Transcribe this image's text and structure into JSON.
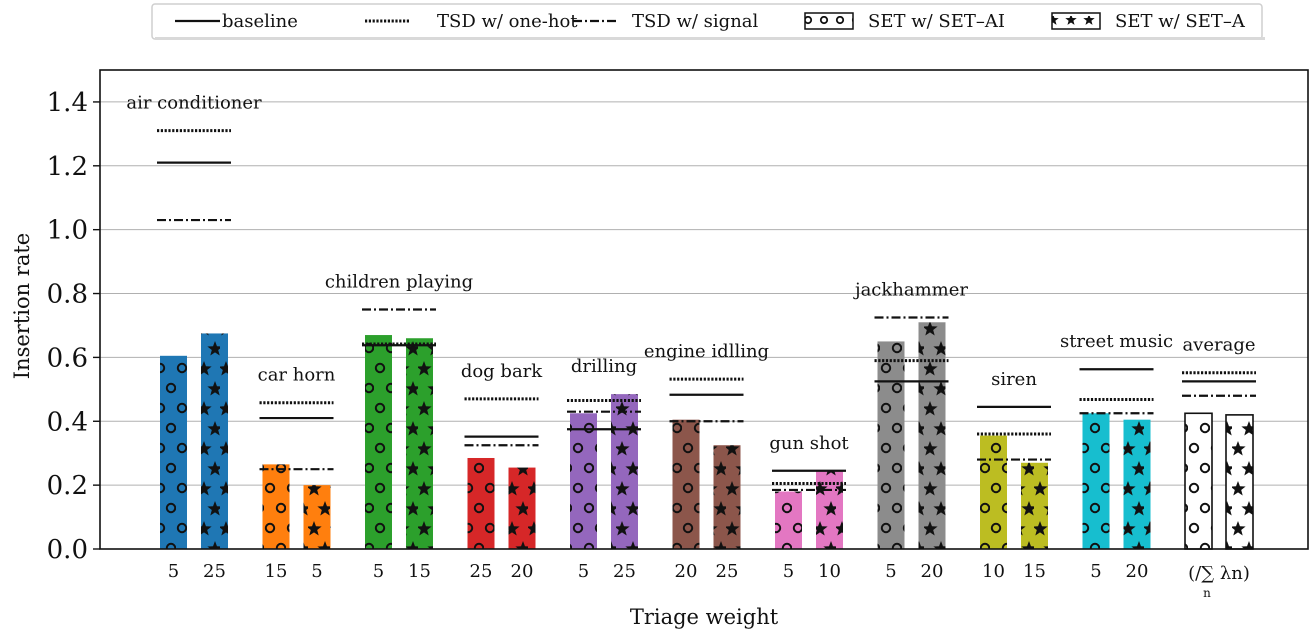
{
  "chart_data": {
    "type": "bar",
    "xlabel": "Triage weight",
    "ylabel": "Insertion rate",
    "ylim": [
      0,
      1.5
    ],
    "yticks": [
      "0.0",
      "0.2",
      "0.4",
      "0.6",
      "0.8",
      "1.0",
      "1.2",
      "1.4"
    ],
    "grid": "horizontal",
    "legend_position": "top",
    "legend": [
      {
        "label": "baseline",
        "style": "solid"
      },
      {
        "label": "TSD w/ one-hot",
        "style": "dotted"
      },
      {
        "label": "TSD w/ signal",
        "style": "dashdot"
      },
      {
        "label": "SET w/ SET–AI",
        "style": "circle-hatch"
      },
      {
        "label": "SET w/ SET–A",
        "style": "star-hatch"
      }
    ],
    "groups": [
      {
        "name": "air conditioner",
        "color": "#1f77b4",
        "weights": [
          "5",
          "25"
        ],
        "set_ai": 0.605,
        "set_a": 0.675,
        "baseline": 1.21,
        "one_hot": 1.31,
        "signal": 1.03
      },
      {
        "name": "car horn",
        "color": "#ff7f0e",
        "weights": [
          "15",
          "5"
        ],
        "set_ai": 0.265,
        "set_a": 0.2,
        "baseline": 0.41,
        "one_hot": 0.458,
        "signal": 0.25
      },
      {
        "name": "children playing",
        "color": "#2ca02c",
        "weights": [
          "5",
          "15"
        ],
        "set_ai": 0.67,
        "set_a": 0.66,
        "baseline": 0.638,
        "one_hot": 0.642,
        "signal": 0.75
      },
      {
        "name": "dog bark",
        "color": "#d62728",
        "weights": [
          "25",
          "20"
        ],
        "set_ai": 0.285,
        "set_a": 0.255,
        "baseline": 0.352,
        "one_hot": 0.47,
        "signal": 0.325
      },
      {
        "name": "drilling",
        "color": "#9467bd",
        "weights": [
          "5",
          "25"
        ],
        "set_ai": 0.425,
        "set_a": 0.485,
        "baseline": 0.375,
        "one_hot": 0.465,
        "signal": 0.43
      },
      {
        "name": "engine idlling",
        "color": "#8c564b",
        "weights": [
          "20",
          "25"
        ],
        "set_ai": 0.405,
        "set_a": 0.325,
        "baseline": 0.483,
        "one_hot": 0.532,
        "signal": 0.4
      },
      {
        "name": "gun shot",
        "color": "#e377c2",
        "weights": [
          "5",
          "10"
        ],
        "set_ai": 0.18,
        "set_a": 0.245,
        "baseline": 0.245,
        "one_hot": 0.205,
        "signal": 0.185
      },
      {
        "name": "jackhammer",
        "color": "#8c8c8c",
        "weights": [
          "5",
          "20"
        ],
        "set_ai": 0.65,
        "set_a": 0.71,
        "baseline": 0.525,
        "one_hot": 0.59,
        "signal": 0.725
      },
      {
        "name": "siren",
        "color": "#bcbd22",
        "weights": [
          "10",
          "15"
        ],
        "set_ai": 0.355,
        "set_a": 0.27,
        "baseline": 0.445,
        "one_hot": 0.36,
        "signal": 0.28
      },
      {
        "name": "street music",
        "color": "#17becf",
        "weights": [
          "5",
          "20"
        ],
        "set_ai": 0.425,
        "set_a": 0.405,
        "baseline": 0.563,
        "one_hot": 0.468,
        "signal": 0.425
      },
      {
        "name": "average",
        "color": "#ffffff",
        "weights": [],
        "weight_label": "(/∑",
        "weight_label_sub": "n",
        "weight_label_tail": "λn)",
        "set_ai": 0.425,
        "set_a": 0.42,
        "baseline": 0.525,
        "one_hot": 0.552,
        "signal": 0.48
      }
    ]
  }
}
